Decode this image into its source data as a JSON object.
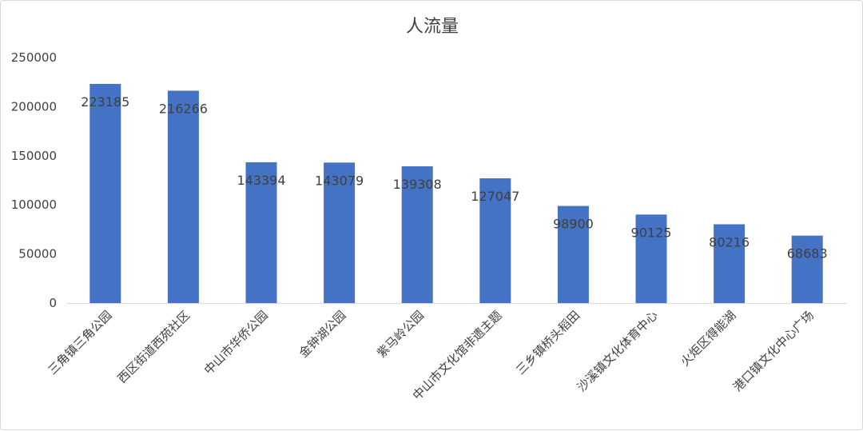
{
  "chart_data": {
    "type": "bar",
    "title": "人流量",
    "xlabel": "",
    "ylabel": "",
    "categories": [
      "三角镇三角公园",
      "西区街道西苑社区",
      "中山市华侨公园",
      "金钟湖公园",
      "紫马岭公园",
      "中山市文化馆非遗主题",
      "三乡镇桥头稻田",
      "沙溪镇文化体育中心",
      "火炬区得能湖",
      "港口镇文化中心广场"
    ],
    "values": [
      223185,
      216266,
      143394,
      143079,
      139308,
      127047,
      98900,
      90125,
      80216,
      68683
    ],
    "value_labels": [
      "223185",
      "216266",
      "143394",
      "143079",
      "139308",
      "127047",
      "98900",
      "90125",
      "80216",
      "68683"
    ],
    "ylim": [
      0,
      250000
    ],
    "yticks": [
      "0",
      "50000",
      "100000",
      "150000",
      "200000",
      "250000"
    ],
    "grid": false,
    "legend": "none",
    "bar_color": "#4472C4",
    "axis_color": "#d9d9d9"
  }
}
